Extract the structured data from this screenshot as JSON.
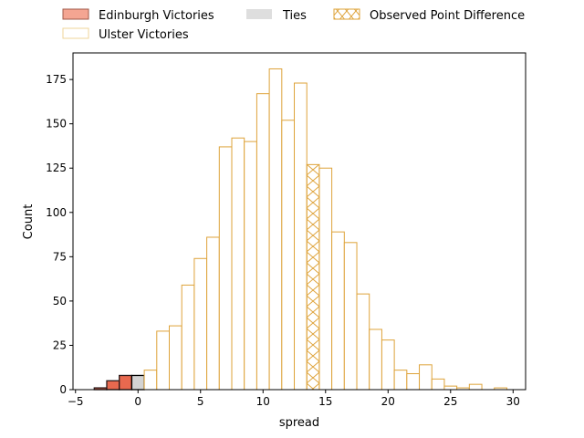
{
  "chart_data": {
    "type": "bar",
    "xlabel": "spread",
    "ylabel": "Count",
    "xlim": [
      -5.2,
      31.0
    ],
    "ylim": [
      0,
      190
    ],
    "x_ticks": [
      -5,
      0,
      5,
      10,
      15,
      20,
      25,
      30
    ],
    "y_ticks": [
      0,
      25,
      50,
      75,
      100,
      125,
      150,
      175
    ],
    "bin_width": 1,
    "legend": {
      "placement": "top, outside axes",
      "entries": [
        {
          "key": "edinburgh",
          "label": "Edinburgh Victories"
        },
        {
          "key": "ulster",
          "label": "Ulster Victories"
        },
        {
          "key": "ties",
          "label": "Ties"
        },
        {
          "key": "observed",
          "label": "Observed Point Difference"
        }
      ]
    },
    "colors": {
      "edinburgh_fill": "#e8694f",
      "edinburgh_legend_fill": "#f4a592",
      "edinburgh_edge": "#2b1a1a",
      "ulster_edge": "#dea33a",
      "ulster_legend_edge": "#efd49a",
      "ties_fill": "#d3d3d3",
      "ties_legend_fill": "#dedede",
      "ties_edge": "#000000",
      "observed_edge": "#dea33a"
    },
    "series": [
      {
        "key": "edinburgh",
        "bins": [
          {
            "x0": -3.5,
            "x1": -2.5,
            "count": 1
          },
          {
            "x0": -2.5,
            "x1": -1.5,
            "count": 5
          },
          {
            "x0": -1.5,
            "x1": -0.5,
            "count": 8
          }
        ]
      },
      {
        "key": "ties",
        "bins": [
          {
            "x0": -0.5,
            "x1": 0.5,
            "count": 8
          }
        ]
      },
      {
        "key": "ulster",
        "bins": [
          {
            "x0": 0.5,
            "x1": 1.5,
            "count": 11
          },
          {
            "x0": 1.5,
            "x1": 2.5,
            "count": 33
          },
          {
            "x0": 2.5,
            "x1": 3.5,
            "count": 36
          },
          {
            "x0": 3.5,
            "x1": 4.5,
            "count": 59
          },
          {
            "x0": 4.5,
            "x1": 5.5,
            "count": 74
          },
          {
            "x0": 5.5,
            "x1": 6.5,
            "count": 86
          },
          {
            "x0": 6.5,
            "x1": 7.5,
            "count": 137
          },
          {
            "x0": 7.5,
            "x1": 8.5,
            "count": 142
          },
          {
            "x0": 8.5,
            "x1": 9.5,
            "count": 140
          },
          {
            "x0": 9.5,
            "x1": 10.5,
            "count": 167
          },
          {
            "x0": 10.5,
            "x1": 11.5,
            "count": 181
          },
          {
            "x0": 11.5,
            "x1": 12.5,
            "count": 152
          },
          {
            "x0": 12.5,
            "x1": 13.5,
            "count": 173
          },
          {
            "x0": 14.5,
            "x1": 15.5,
            "count": 125
          },
          {
            "x0": 15.5,
            "x1": 16.5,
            "count": 89
          },
          {
            "x0": 16.5,
            "x1": 17.5,
            "count": 83
          },
          {
            "x0": 17.5,
            "x1": 18.5,
            "count": 54
          },
          {
            "x0": 18.5,
            "x1": 19.5,
            "count": 34
          },
          {
            "x0": 19.5,
            "x1": 20.5,
            "count": 28
          },
          {
            "x0": 20.5,
            "x1": 21.5,
            "count": 11
          },
          {
            "x0": 21.5,
            "x1": 22.5,
            "count": 9
          },
          {
            "x0": 22.5,
            "x1": 23.5,
            "count": 14
          },
          {
            "x0": 23.5,
            "x1": 24.5,
            "count": 6
          },
          {
            "x0": 24.5,
            "x1": 25.5,
            "count": 2
          },
          {
            "x0": 25.5,
            "x1": 26.5,
            "count": 1
          },
          {
            "x0": 26.5,
            "x1": 27.5,
            "count": 3
          },
          {
            "x0": 28.5,
            "x1": 29.5,
            "count": 1
          }
        ]
      },
      {
        "key": "observed",
        "hatch": "x",
        "bins": [
          {
            "x0": 13.5,
            "x1": 14.5,
            "count": 127
          }
        ]
      }
    ]
  }
}
